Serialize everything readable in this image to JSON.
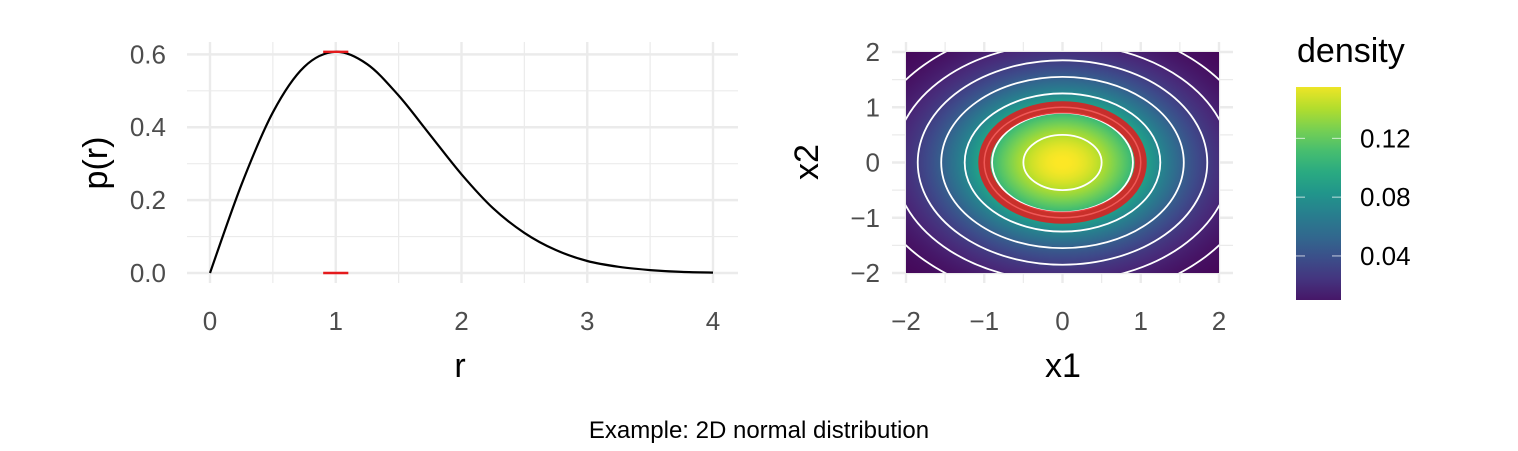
{
  "caption": "Example: 2D normal distribution",
  "chart_data": [
    {
      "type": "line",
      "xlabel": "r",
      "ylabel": "p(r)",
      "xlim": [
        0,
        4
      ],
      "ylim": [
        0,
        0.6065
      ],
      "x_ticks": [
        0,
        1,
        2,
        3,
        4
      ],
      "x_tick_labels": [
        "0",
        "1",
        "2",
        "3",
        "4"
      ],
      "y_ticks": [
        0,
        0.2,
        0.4,
        0.6
      ],
      "y_tick_labels": [
        "0.0",
        "0.2",
        "0.4",
        "0.6"
      ],
      "grid": true,
      "series": [
        {
          "color": "#000000",
          "x": [
            0,
            0.25,
            0.5,
            0.75,
            1.0,
            1.25,
            1.5,
            1.75,
            2.0,
            2.25,
            2.5,
            2.75,
            3.0,
            3.25,
            3.5,
            3.75,
            4.0
          ],
          "y": [
            0,
            0.242,
            0.441,
            0.566,
            0.607,
            0.573,
            0.487,
            0.379,
            0.271,
            0.178,
            0.11,
            0.063,
            0.033,
            0.017,
            0.008,
            0.003,
            0.001
          ]
        }
      ],
      "highlights": [
        {
          "color": "#e41a1c",
          "x_range": [
            0.9,
            1.1
          ],
          "y": 0.607
        },
        {
          "color": "#e41a1c",
          "x_range": [
            0.9,
            1.1
          ],
          "y": 0
        }
      ]
    },
    {
      "type": "heatmap",
      "xlabel": "x1",
      "ylabel": "x2",
      "xlim": [
        -2,
        2
      ],
      "ylim": [
        -2,
        2
      ],
      "x_ticks": [
        -2,
        -1,
        0,
        1,
        2
      ],
      "x_tick_labels": [
        "−2",
        "−1",
        "0",
        "1",
        "2"
      ],
      "y_ticks": [
        -2,
        -1,
        0,
        1,
        2
      ],
      "y_tick_labels": [
        "−2",
        "−1",
        "0",
        "1",
        "2"
      ],
      "grid": true,
      "colormap": "viridis",
      "color_range": [
        0.0,
        0.159
      ],
      "contour_radii": [
        0.5,
        0.9,
        1.25,
        1.55,
        1.85,
        2.15,
        2.5
      ],
      "contour_color": "#ffffff",
      "highlight_ring": {
        "radius": 1.0,
        "color": "#e41a1c"
      },
      "legend": {
        "title": "density",
        "ticks": [
          0.04,
          0.08,
          0.12
        ],
        "tick_labels": [
          "0.04",
          "0.08",
          "0.12"
        ],
        "range": [
          0.01,
          0.155
        ],
        "position": "right"
      }
    }
  ],
  "colors": {
    "grid": "#ebebeb",
    "highlight": "#e41a1c",
    "viridis": [
      "#440154",
      "#482878",
      "#3e4989",
      "#31688e",
      "#26828e",
      "#1f9e89",
      "#35b779",
      "#6ece58",
      "#b5de2b",
      "#fde725"
    ]
  }
}
